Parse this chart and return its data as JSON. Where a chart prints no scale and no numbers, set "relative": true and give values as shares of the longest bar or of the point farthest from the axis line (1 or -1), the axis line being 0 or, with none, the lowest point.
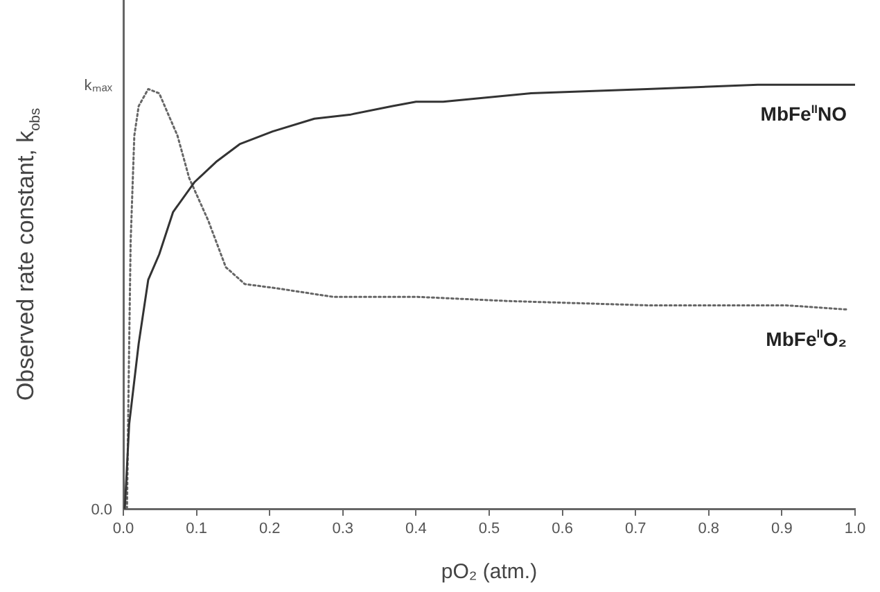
{
  "chart_data": {
    "type": "line",
    "xlabel": "pO₂ (atm.)",
    "ylabel": "Observed rate constant, k$_{obs}$",
    "xlim": [
      0,
      1
    ],
    "xticks": [
      {
        "value": 0,
        "label": "0.0"
      },
      0.1,
      0.2,
      0.3,
      0.4,
      0.5,
      0.6,
      0.7,
      0.8,
      0.9,
      {
        "value": 1,
        "label": "1.0"
      }
    ],
    "relative": true,
    "annotations": [
      "0.0",
      "kₘₐₓ"
    ],
    "grid": false,
    "legend": false,
    "marker": "none",
    "series": [
      {
        "name": "MbFe$^{II}$NO",
        "color": "#333333",
        "line_style": "solid",
        "x": [
          0.002,
          0.008,
          0.021,
          0.034,
          0.049,
          0.068,
          0.097,
          0.128,
          0.159,
          0.204,
          0.261,
          0.311,
          0.368,
          0.4,
          0.437,
          0.557,
          0.716,
          0.867,
          1.0
        ],
        "values": [
          0,
          0.2,
          0.39,
          0.54,
          0.6,
          0.7,
          0.77,
          0.82,
          0.86,
          0.89,
          0.92,
          0.93,
          0.95,
          0.96,
          0.96,
          0.98,
          0.99,
          1.0,
          1.0
        ]
      },
      {
        "name": "MbFe$^{II}$O₂",
        "color": "#666666",
        "line_style": "dotted",
        "x": [
          0.005,
          0.008,
          0.01,
          0.015,
          0.021,
          0.034,
          0.049,
          0.074,
          0.09,
          0.116,
          0.14,
          0.166,
          0.21,
          0.286,
          0.4,
          0.526,
          0.715,
          0.905,
          0.99
        ],
        "values": [
          0,
          0.39,
          0.63,
          0.88,
          0.95,
          0.99,
          0.98,
          0.88,
          0.78,
          0.68,
          0.57,
          0.53,
          0.52,
          0.5,
          0.5,
          0.49,
          0.48,
          0.48,
          0.47
        ]
      }
    ]
  }
}
